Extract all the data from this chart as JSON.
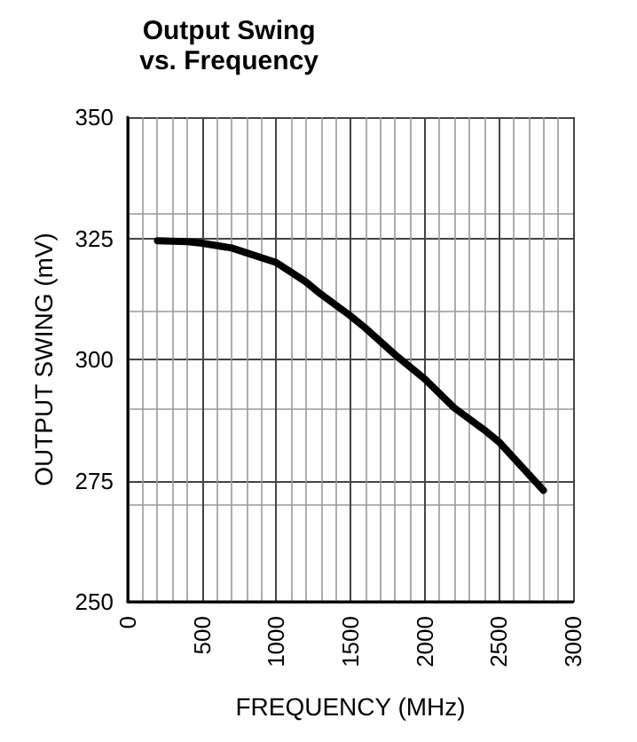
{
  "chart_data": {
    "type": "line",
    "title": "Output Swing\nvs. Frequency",
    "xlabel": "FREQUENCY (MHz)",
    "ylabel": "OUTPUT SWING (mV)",
    "x": [
      200,
      400,
      500,
      700,
      800,
      1000,
      1100,
      1200,
      1300,
      1500,
      1600,
      1800,
      2000,
      2200,
      2400,
      2500,
      2800
    ],
    "series": [
      {
        "color": "#000000",
        "values": [
          324.5,
          324.3,
          324,
          323,
          322,
          320,
          318,
          316,
          313.5,
          309,
          306.5,
          301,
          296,
          290,
          285.5,
          283,
          273
        ]
      }
    ],
    "xlim": [
      0,
      3000
    ],
    "xticks": [
      0,
      500,
      1000,
      1500,
      2000,
      2500,
      3000
    ],
    "ylim": [
      250,
      350
    ],
    "yticks": [
      250,
      275,
      300,
      325,
      350
    ],
    "grid": true,
    "marker": "none",
    "line_style": "solid"
  }
}
